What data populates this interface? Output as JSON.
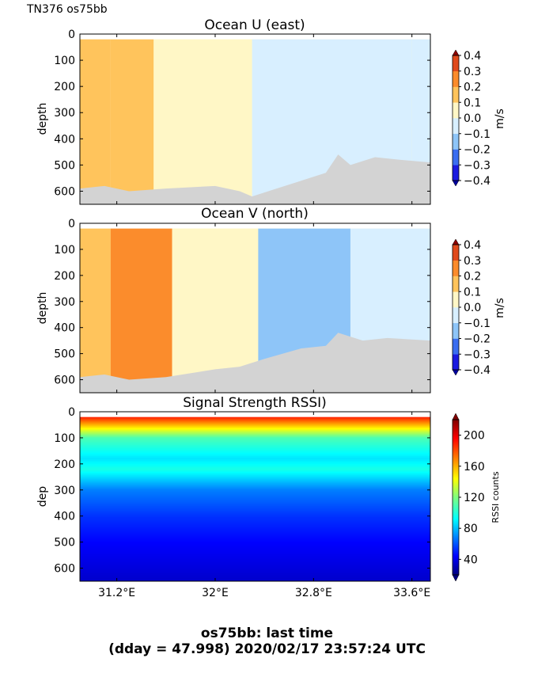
{
  "header": {
    "label": "TN376 os75bb"
  },
  "footer": {
    "line1": "os75bb: last time",
    "line2": "(dday = 47.998) 2020/02/17 23:57:24 UTC"
  },
  "chart_data": [
    {
      "type": "heatmap",
      "title": "Ocean U (east)",
      "ylabel": "depth",
      "xlabel": "",
      "xlim": [
        30.9,
        33.75
      ],
      "ylim": [
        650,
        0
      ],
      "yticks": [
        0,
        100,
        200,
        300,
        400,
        500,
        600
      ],
      "xticks": [
        31.2,
        32.0,
        32.8,
        33.6
      ],
      "colorbar": {
        "label": "m/s",
        "range": [
          -0.4,
          0.4
        ],
        "ticks": [
          "0.4",
          "0.3",
          "0.2",
          "0.1",
          "0.0",
          "−0.1",
          "−0.2",
          "−0.3",
          "−0.4"
        ],
        "levels": [
          -0.4,
          -0.3,
          -0.2,
          -0.1,
          0.0,
          0.1,
          0.2,
          0.3,
          0.4
        ],
        "colors": [
          "#1a1ae0",
          "#3a6df0",
          "#8ec5f8",
          "#d8efff",
          "#fff7c6",
          "#ffc45c",
          "#fb8c2c",
          "#e04a1c"
        ]
      },
      "regions": [
        {
          "x": [
            30.9,
            31.15
          ],
          "value": 0.15
        },
        {
          "x": [
            31.15,
            31.5
          ],
          "value": 0.15
        },
        {
          "x": [
            31.5,
            32.3
          ],
          "value": 0.05
        },
        {
          "x": [
            32.3,
            33.6
          ],
          "value": -0.03
        },
        {
          "x": [
            33.6,
            33.75
          ],
          "value": -0.05
        }
      ],
      "seafloor": [
        [
          30.9,
          590
        ],
        [
          31.1,
          580
        ],
        [
          31.3,
          600
        ],
        [
          31.6,
          590
        ],
        [
          32.0,
          580
        ],
        [
          32.2,
          600
        ],
        [
          32.3,
          620
        ],
        [
          32.5,
          590
        ],
        [
          32.7,
          560
        ],
        [
          32.9,
          530
        ],
        [
          33.0,
          460
        ],
        [
          33.1,
          500
        ],
        [
          33.3,
          470
        ],
        [
          33.5,
          480
        ],
        [
          33.75,
          490
        ]
      ]
    },
    {
      "type": "heatmap",
      "title": "Ocean V (north)",
      "ylabel": "depth",
      "xlabel": "",
      "xlim": [
        30.9,
        33.75
      ],
      "ylim": [
        650,
        0
      ],
      "yticks": [
        0,
        100,
        200,
        300,
        400,
        500,
        600
      ],
      "xticks": [
        31.2,
        32.0,
        32.8,
        33.6
      ],
      "colorbar": {
        "label": "m/s",
        "range": [
          -0.4,
          0.4
        ],
        "ticks": [
          "0.4",
          "0.3",
          "0.2",
          "0.1",
          "0.0",
          "−0.1",
          "−0.2",
          "−0.3",
          "−0.4"
        ],
        "levels": [
          -0.4,
          -0.3,
          -0.2,
          -0.1,
          0.0,
          0.1,
          0.2,
          0.3,
          0.4
        ],
        "colors": [
          "#1a1ae0",
          "#3a6df0",
          "#8ec5f8",
          "#d8efff",
          "#fff7c6",
          "#ffc45c",
          "#fb8c2c",
          "#e04a1c"
        ]
      },
      "regions": [
        {
          "x": [
            30.9,
            31.15
          ],
          "value": 0.15
        },
        {
          "x": [
            31.15,
            31.65
          ],
          "value": 0.25
        },
        {
          "x": [
            31.65,
            32.35
          ],
          "value": 0.05
        },
        {
          "x": [
            32.35,
            33.1
          ],
          "value": -0.15
        },
        {
          "x": [
            33.1,
            33.75
          ],
          "value": -0.05
        }
      ],
      "seafloor": [
        [
          30.9,
          590
        ],
        [
          31.1,
          580
        ],
        [
          31.3,
          600
        ],
        [
          31.6,
          590
        ],
        [
          32.0,
          560
        ],
        [
          32.2,
          550
        ],
        [
          32.4,
          520
        ],
        [
          32.7,
          480
        ],
        [
          32.9,
          470
        ],
        [
          33.0,
          420
        ],
        [
          33.2,
          450
        ],
        [
          33.4,
          440
        ],
        [
          33.75,
          450
        ]
      ]
    },
    {
      "type": "heatmap",
      "title": "Signal Strength RSSI)",
      "ylabel": "dep",
      "xlabel": "",
      "xlim": [
        30.9,
        33.75
      ],
      "ylim": [
        650,
        0
      ],
      "yticks": [
        0,
        100,
        200,
        300,
        400,
        500,
        600
      ],
      "xticks": [
        31.2,
        32.0,
        32.8,
        33.6
      ],
      "xticklabels": [
        "31.2°E",
        "32°E",
        "32.8°E",
        "33.6°E"
      ],
      "colorbar": {
        "label": "RSSI counts",
        "range": [
          20,
          220
        ],
        "ticks": [
          "200",
          "160",
          "120",
          "80",
          "40"
        ],
        "tick_values": [
          200,
          160,
          120,
          80,
          40
        ]
      },
      "profile_depth": [
        20,
        100,
        180,
        220,
        300,
        400,
        500,
        650
      ],
      "profile_rssi": [
        190,
        110,
        90,
        100,
        70,
        55,
        45,
        35
      ]
    }
  ]
}
